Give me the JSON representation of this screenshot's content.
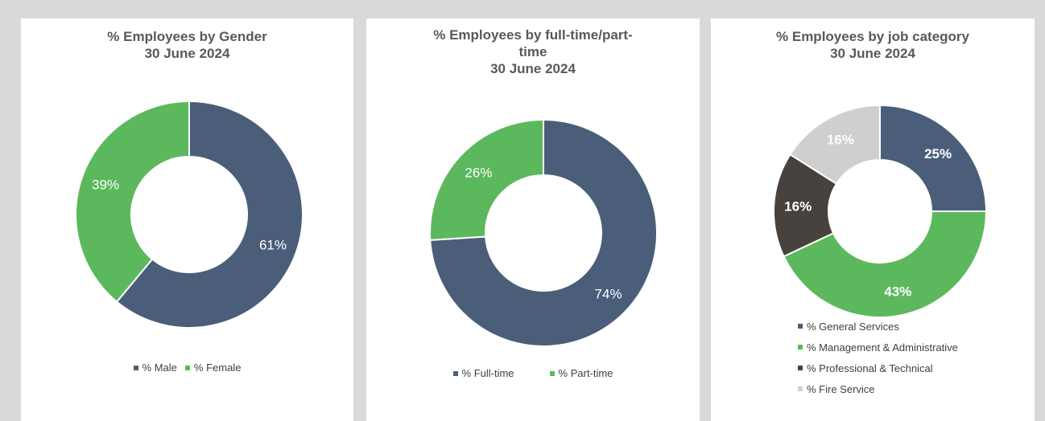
{
  "chart_data": [
    {
      "type": "donut",
      "title": [
        "% Employees by Gender",
        "30 June 2024"
      ],
      "categories": [
        "% Male",
        "% Female"
      ],
      "values": [
        61,
        39
      ],
      "labels": [
        "61%",
        "39%"
      ],
      "colors": [
        "#4a5e7a",
        "#5cb85c"
      ],
      "label_colors": [
        "#ffffff",
        "#ffffff"
      ],
      "label_bold": false,
      "legend_position": "bottom"
    },
    {
      "type": "donut",
      "title": [
        "% Employees by full-time/part-",
        "time",
        "30 June 2024"
      ],
      "categories": [
        "% Full-time",
        "% Part-time"
      ],
      "values": [
        74,
        26
      ],
      "labels": [
        "74%",
        "26%"
      ],
      "colors": [
        "#4a5e7a",
        "#5cb85c"
      ],
      "label_colors": [
        "#ffffff",
        "#ffffff"
      ],
      "label_bold": false,
      "legend_position": "bottom"
    },
    {
      "type": "donut",
      "title": [
        "% Employees by job category",
        "30 June 2024"
      ],
      "categories": [
        "% General Services",
        "% Management & Administrative",
        "% Professional & Technical",
        "% Fire Service"
      ],
      "values": [
        25,
        43,
        16,
        16
      ],
      "labels": [
        "25%",
        "43%",
        "16%",
        "16%"
      ],
      "colors": [
        "#4a5e7a",
        "#5cb85c",
        "#48423f",
        "#d0cece"
      ],
      "label_colors": [
        "#ffffff",
        "#ffffff",
        "#ffffff",
        "#ffffff"
      ],
      "label_bold": true,
      "legend_position": "bottom-left"
    }
  ]
}
